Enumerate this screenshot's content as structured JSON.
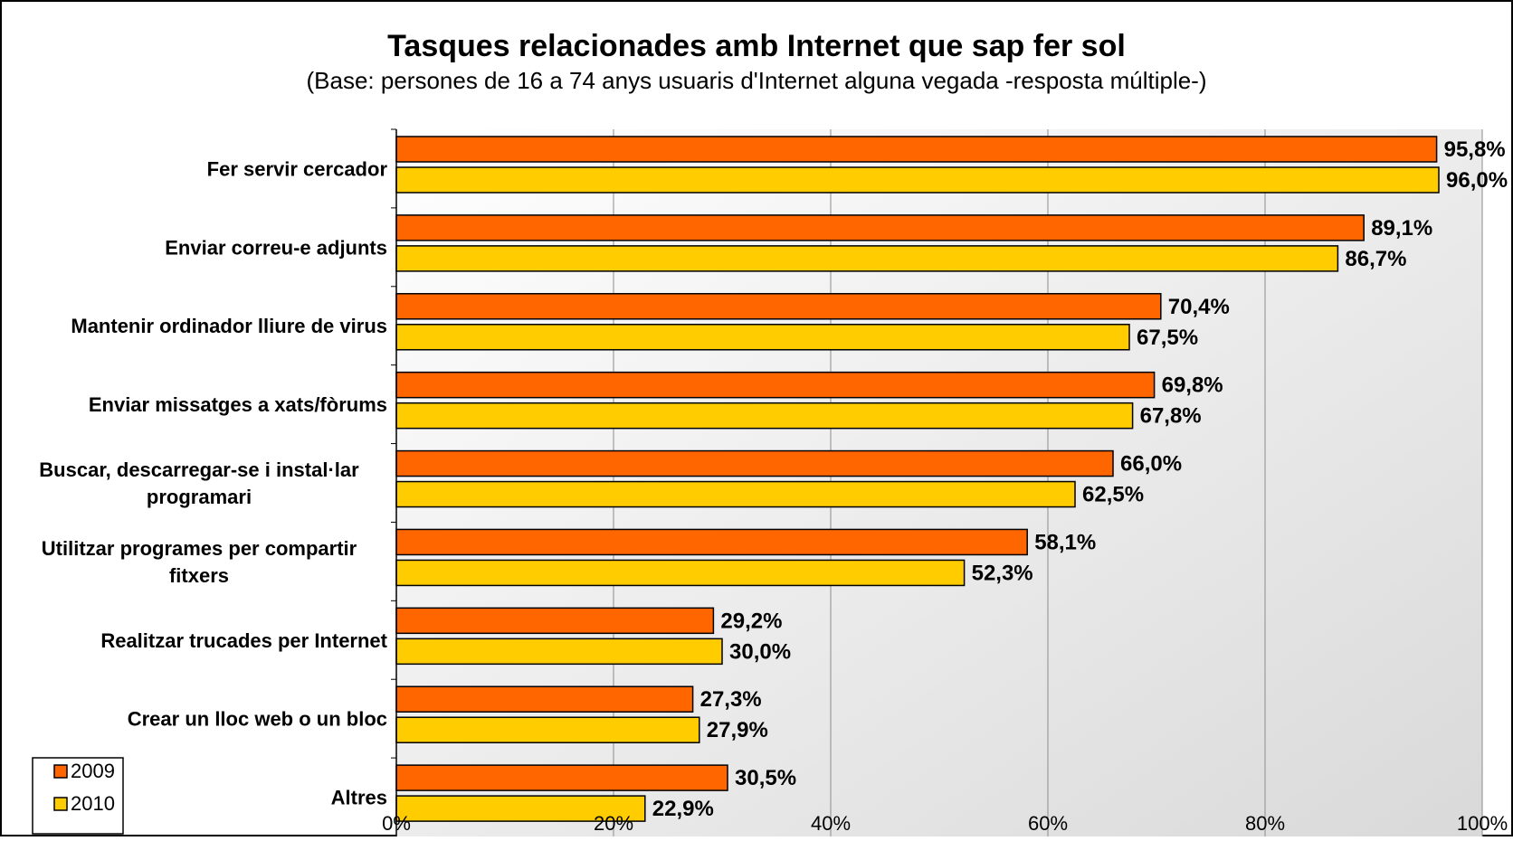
{
  "chart_data": {
    "type": "bar",
    "orientation": "horizontal",
    "title": "Tasques relacionades amb Internet que sap fer sol",
    "subtitle": "(Base: persones de 16 a 74 anys usuaris d'Internet alguna vegada -resposta múltiple-)",
    "categories": [
      [
        "Fer servir cercador"
      ],
      [
        "Enviar correu-e adjunts"
      ],
      [
        "Mantenir ordinador lliure de virus"
      ],
      [
        "Enviar missatges a xats/fòrums"
      ],
      [
        "Buscar, descarregar-se i instal·lar",
        "programari"
      ],
      [
        "Utilitzar programes per compartir",
        "fitxers"
      ],
      [
        "Realitzar trucades per Internet"
      ],
      [
        "Crear un lloc web o un bloc"
      ],
      [
        "Altres"
      ]
    ],
    "series": [
      {
        "name": "2009",
        "color": "#FF6600",
        "values": [
          95.8,
          89.1,
          70.4,
          69.8,
          66.0,
          58.1,
          29.2,
          27.3,
          30.5
        ],
        "labels": [
          "95,8%",
          "89,1%",
          "70,4%",
          "69,8%",
          "66,0%",
          "58,1%",
          "29,2%",
          "27,3%",
          "30,5%"
        ]
      },
      {
        "name": "2010",
        "color": "#FFCC00",
        "values": [
          96.0,
          86.7,
          67.5,
          67.8,
          62.5,
          52.3,
          30.0,
          27.9,
          22.9
        ],
        "labels": [
          "96,0%",
          "86,7%",
          "67,5%",
          "67,8%",
          "62,5%",
          "52,3%",
          "30,0%",
          "27,9%",
          "22,9%"
        ]
      }
    ],
    "xlim": [
      0,
      100
    ],
    "xticks": [
      "0%",
      "20%",
      "40%",
      "60%",
      "80%",
      "100%"
    ],
    "grid": true,
    "legend_position": "bottom-left"
  }
}
